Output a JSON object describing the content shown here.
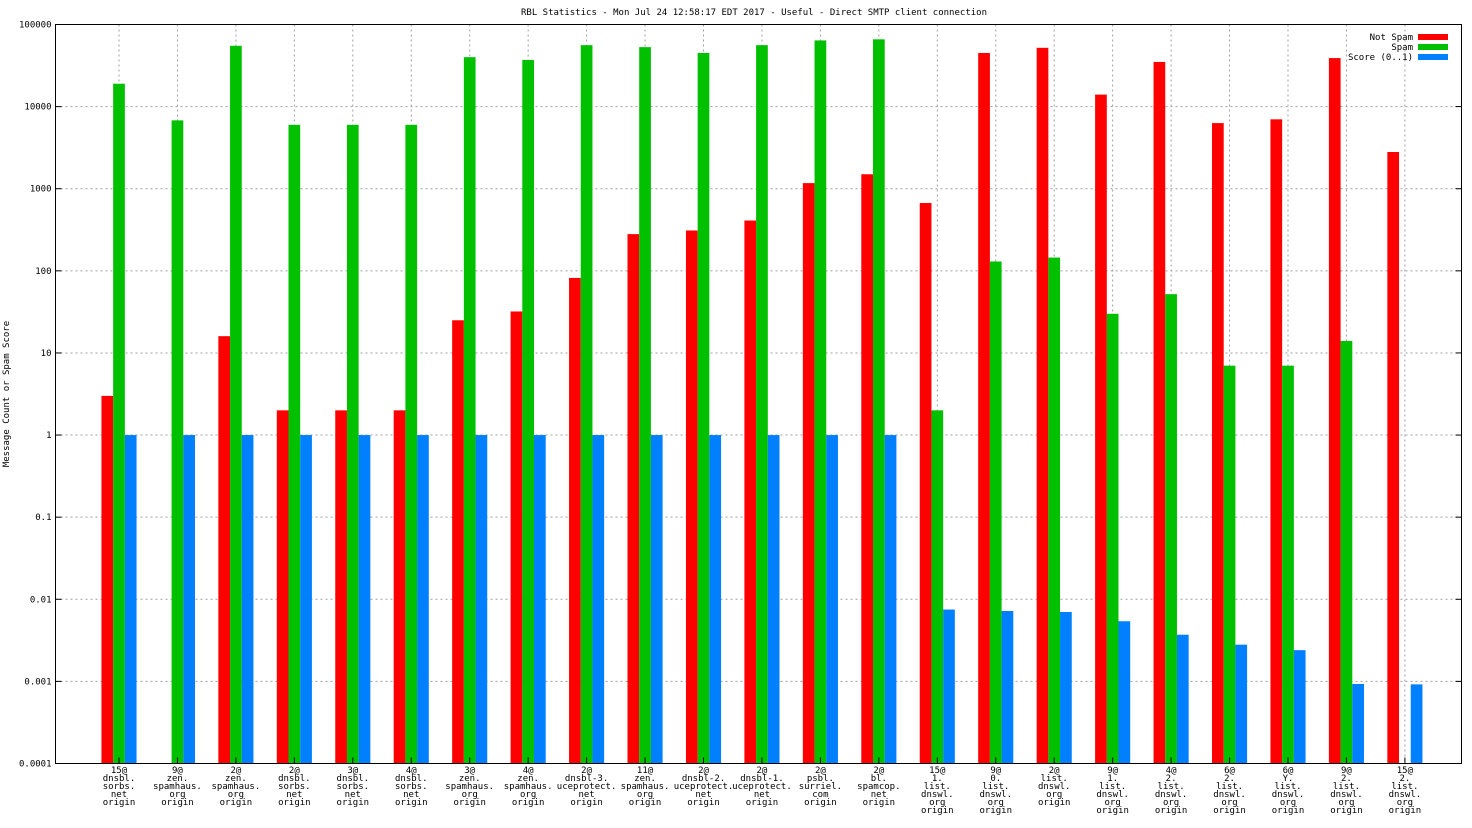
{
  "chart_data": {
    "type": "bar",
    "title": "RBL Statistics - Mon Jul 24 12:58:17 EDT 2017 - Useful - Direct SMTP client connection",
    "ylabel": "Message Count or Spam Score",
    "xlabel": "",
    "yscale": "log",
    "ylim": [
      0.0001,
      100000
    ],
    "yticks": [
      "0.0001",
      "0.001",
      "0.01",
      "0.1",
      "1",
      "10",
      "100",
      "1000",
      "10000",
      "100000"
    ],
    "grid": true,
    "legend_position": "top-right",
    "categories": [
      [
        "15@",
        "dnsbl.",
        "sorbs.",
        "net",
        "origin"
      ],
      [
        "9@",
        "zen.",
        "spamhaus.",
        "org",
        "origin"
      ],
      [
        "2@",
        "zen.",
        "spamhaus.",
        "org",
        "origin"
      ],
      [
        "2@",
        "dnsbl.",
        "sorbs.",
        "net",
        "origin"
      ],
      [
        "3@",
        "dnsbl.",
        "sorbs.",
        "net",
        "origin"
      ],
      [
        "4@",
        "dnsbl.",
        "sorbs.",
        "net",
        "origin"
      ],
      [
        "3@",
        "zen.",
        "spamhaus.",
        "org",
        "origin"
      ],
      [
        "4@",
        "zen.",
        "spamhaus.",
        "org",
        "origin"
      ],
      [
        "2@",
        "dnsbl-3.",
        "uceprotect.",
        "net",
        "origin"
      ],
      [
        "11@",
        "zen.",
        "spamhaus.",
        "org",
        "origin"
      ],
      [
        "2@",
        "dnsbl-2.",
        "uceprotect.",
        "net",
        "origin"
      ],
      [
        "2@",
        "dnsbl-1.",
        "uceprotect.",
        "net",
        "origin"
      ],
      [
        "2@",
        "psbl.",
        "surriel.",
        "com",
        "origin"
      ],
      [
        "2@",
        "bl.",
        "spamcop.",
        "net",
        "origin"
      ],
      [
        "15@",
        "1.",
        "list.",
        "dnswl.",
        "org",
        "origin"
      ],
      [
        "9@",
        "0.",
        "list.",
        "dnswl.",
        "org",
        "origin"
      ],
      [
        "2@",
        "list.",
        "dnswl.",
        "org",
        "origin"
      ],
      [
        "9@",
        "1.",
        "list.",
        "dnswl.",
        "org",
        "origin"
      ],
      [
        "4@",
        "2.",
        "list.",
        "dnswl.",
        "org",
        "origin"
      ],
      [
        "6@",
        "2.",
        "list.",
        "dnswl.",
        "org",
        "origin"
      ],
      [
        "6@",
        "Y.",
        "list.",
        "dnswl.",
        "org",
        "origin"
      ],
      [
        "9@",
        "2.",
        "list.",
        "dnswl.",
        "org",
        "origin"
      ],
      [
        "15@",
        "2.",
        "list.",
        "dnswl.",
        "org",
        "origin"
      ]
    ],
    "series": [
      {
        "name": "Not Spam",
        "color": "#ff0000",
        "values": [
          3,
          null,
          16,
          2,
          2,
          2,
          25,
          32,
          82,
          280,
          310,
          410,
          1170,
          1500,
          670,
          45000,
          52000,
          14000,
          35000,
          6300,
          7000,
          39000,
          2800
        ]
      },
      {
        "name": "Spam",
        "color": "#00c000",
        "values": [
          19000,
          6800,
          55000,
          6000,
          6000,
          6000,
          40000,
          37000,
          56000,
          53000,
          45000,
          56000,
          64000,
          66000,
          2,
          130,
          145,
          30,
          52,
          7,
          7,
          14,
          null
        ]
      },
      {
        "name": "Score (0..1)",
        "color": "#0080ff",
        "values": [
          1,
          1,
          1,
          1,
          1,
          1,
          1,
          1,
          1,
          1,
          1,
          1,
          1,
          1,
          0.0075,
          0.0072,
          0.007,
          0.0054,
          0.0037,
          0.0028,
          0.0024,
          0.00093,
          0.00092
        ]
      }
    ]
  }
}
